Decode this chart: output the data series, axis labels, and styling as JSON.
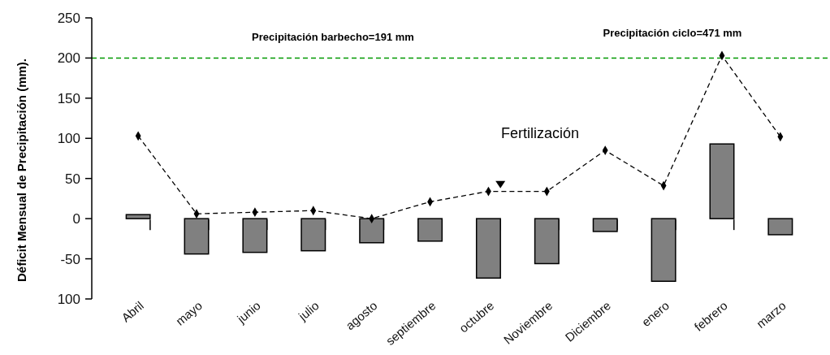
{
  "chart_data": {
    "type": "bar",
    "ylabel": "Déficit Mensual de Precipitación  (mm).",
    "categories": [
      "Abril",
      "mayo",
      "junio",
      "julio",
      "agosto",
      "septiembre",
      "octubre",
      "Noviembre",
      "Diciembre",
      "enero",
      "febrero",
      "marzo"
    ],
    "series": [
      {
        "color": "#808080",
        "values": [
          5,
          -44,
          -42,
          -40,
          -30,
          -28,
          -74,
          -56,
          -16,
          -78,
          93,
          -20
        ]
      },
      {
        "type": "line",
        "color": "#000000",
        "marker": "diamond",
        "line_style": "dashed",
        "values": [
          103,
          6,
          8,
          10,
          0,
          21,
          34,
          34,
          85,
          41,
          203,
          102
        ]
      }
    ],
    "ylim": [
      -100,
      250
    ],
    "yticks": [
      {
        "value": -100,
        "label": "100"
      },
      -50,
      0,
      50,
      100,
      150,
      200,
      250
    ],
    "ref_lines": [
      {
        "axis": "y",
        "value": 200,
        "color": "#009900",
        "line_style": "dashed"
      }
    ],
    "annotations": [
      "Precipitación barbecho=191 mm",
      "Precipitación ciclo=471 mm",
      "Fertilización"
    ],
    "grid": false
  }
}
